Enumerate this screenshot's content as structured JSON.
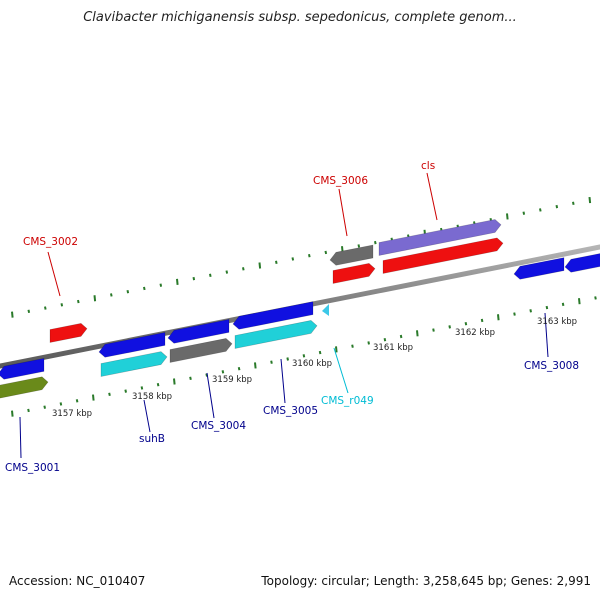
{
  "title": "Clavibacter michiganensis subsp. sepedonicus, complete genom...",
  "footer": {
    "accession": "Accession: NC_010407",
    "summary": "Topology: circular; Length: 3,258,645 bp; Genes: 2,991"
  },
  "colors": {
    "backbone": "#8a8a8a",
    "tick": "#2a7a2a",
    "label_red": "#cc0000",
    "label_blue": "#00008b",
    "label_cyan": "#00bcd4",
    "gene_blue": "#1010e0",
    "gene_cyan": "#20d0d8",
    "gene_gray": "#6a6a6a",
    "gene_red": "#ee1010",
    "gene_purple": "#7a6ad0",
    "gene_olive": "#6a8a1a",
    "rna_cyan": "#3cc8e8"
  },
  "scale_labels": [
    "3157 kbp",
    "3158 kbp",
    "3159 kbp",
    "3160 kbp",
    "3161 kbp",
    "3162 kbp",
    "3163 kbp"
  ],
  "gene_labels": [
    {
      "text": "CMS_3001",
      "color": "label_blue"
    },
    {
      "text": "CMS_3002",
      "color": "label_red"
    },
    {
      "text": "suhB",
      "color": "label_blue"
    },
    {
      "text": "CMS_3004",
      "color": "label_blue"
    },
    {
      "text": "CMS_3005",
      "color": "label_blue"
    },
    {
      "text": "CMS_r049",
      "color": "label_cyan"
    },
    {
      "text": "CMS_3006",
      "color": "label_red"
    },
    {
      "text": "cls",
      "color": "label_red"
    },
    {
      "text": "CMS_3008",
      "color": "label_blue"
    }
  ]
}
